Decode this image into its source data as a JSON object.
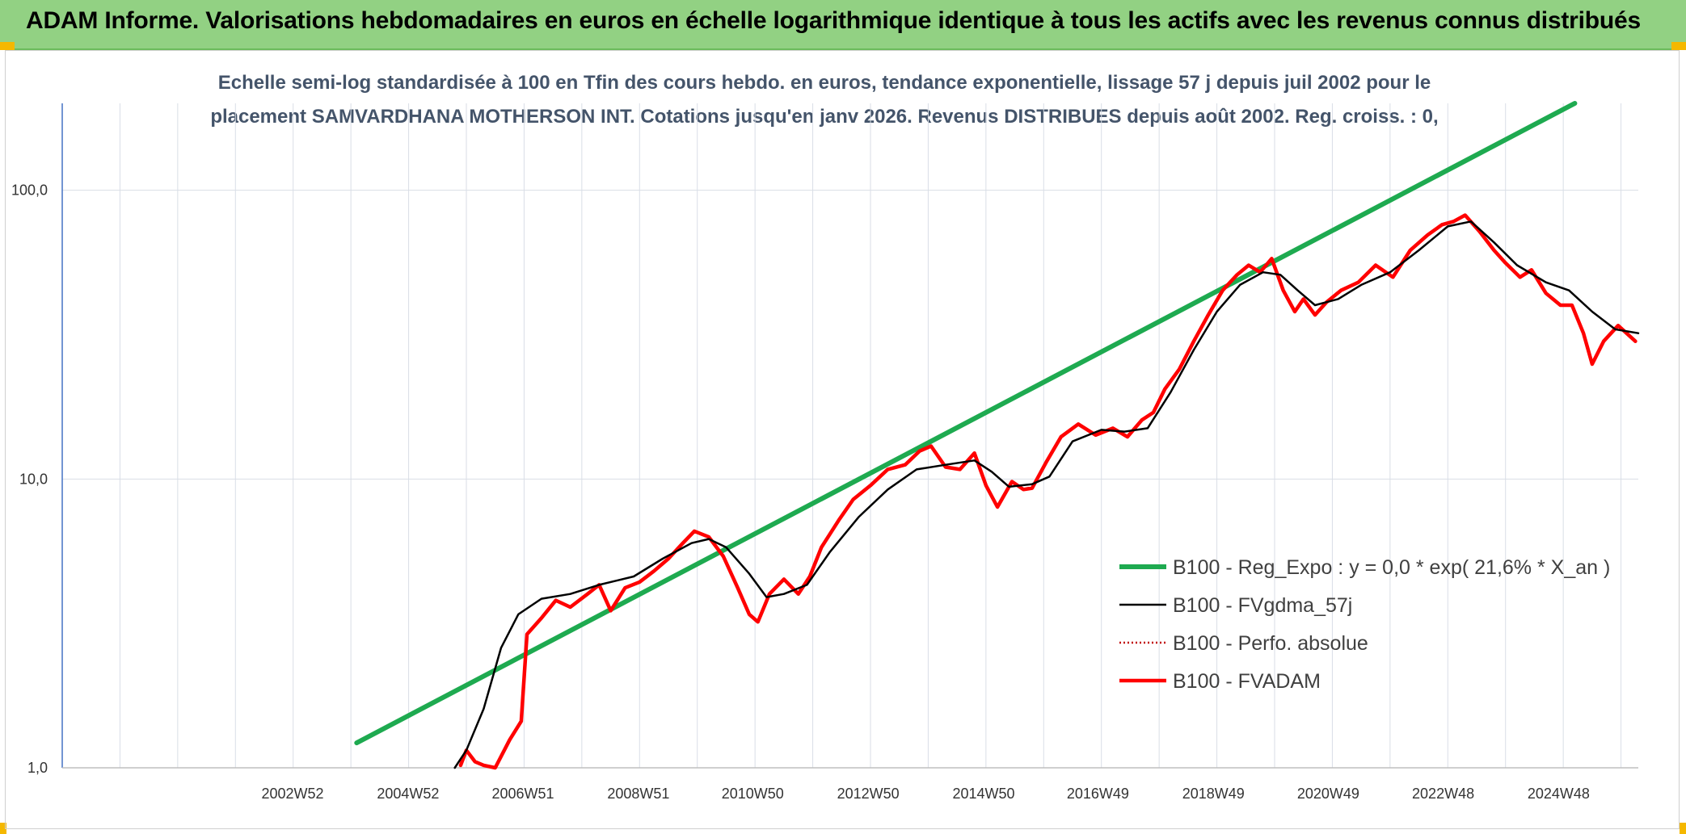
{
  "banner": {
    "title": "ADAM Informe. Valorisations hebdomadaires en euros en échelle logarithmique identique à tous les actifs avec les revenus connus distribués"
  },
  "colors": {
    "banner_bg": "#92d183",
    "regression": "#1eaa50",
    "gdma": "#000000",
    "perfo": "#c00000",
    "fvadam": "#ff0000",
    "title_text": "#44546a",
    "grid": "#d9dee6",
    "y_axis": "#4472c4"
  },
  "chart_data": {
    "type": "line",
    "title_line1": "Echelle semi-log standardisée à 100 en Tfin des cours hebdo. en euros, tendance exponentielle, lissage 57 j depuis juil 2002 pour le",
    "title_line2": "placement SAMVARDHANA MOTHERSON INT. Cotations jusqu'en janv 2026. Revenus DISTRIBUES depuis août 2002. Reg. croiss. : 0,",
    "y_scale": "log",
    "ylim": [
      1,
      200
    ],
    "y_ticks": [
      1,
      10,
      100
    ],
    "y_tick_labels": [
      "1,0",
      "10,0",
      "100,0"
    ],
    "xlim": [
      1999.0,
      2026.3
    ],
    "x_ticks": [
      2002.99,
      2004.99,
      2006.98,
      2008.98,
      2010.96,
      2012.96,
      2014.96,
      2016.94,
      2018.94,
      2020.93,
      2022.92,
      2024.92
    ],
    "x_tick_labels": [
      "2002W52",
      "2004W52",
      "2006W51",
      "2008W51",
      "2010W50",
      "2012W50",
      "2014W50",
      "2016W49",
      "2018W49",
      "2020W49",
      "2022W48",
      "2024W48"
    ],
    "grid": true,
    "legend_position": "lower-right",
    "series": [
      {
        "name": "B100 - Reg_Expo : y = 0,0 * exp( 21,6% *  X_an )",
        "style": "thick-solid",
        "points": [
          [
            2004.1,
            1.22
          ],
          [
            2025.2,
            200.0
          ]
        ]
      },
      {
        "name": "B100 - FVgdma_57j",
        "style": "thin-solid",
        "points": [
          [
            2005.8,
            1.0
          ],
          [
            2006.0,
            1.15
          ],
          [
            2006.3,
            1.6
          ],
          [
            2006.6,
            2.6
          ],
          [
            2006.9,
            3.4
          ],
          [
            2007.3,
            3.85
          ],
          [
            2007.8,
            4.0
          ],
          [
            2008.3,
            4.3
          ],
          [
            2008.9,
            4.6
          ],
          [
            2009.4,
            5.3
          ],
          [
            2009.9,
            6.0
          ],
          [
            2010.2,
            6.2
          ],
          [
            2010.5,
            5.8
          ],
          [
            2010.9,
            4.7
          ],
          [
            2011.2,
            3.9
          ],
          [
            2011.5,
            4.0
          ],
          [
            2011.9,
            4.3
          ],
          [
            2012.3,
            5.6
          ],
          [
            2012.8,
            7.4
          ],
          [
            2013.3,
            9.2
          ],
          [
            2013.8,
            10.8
          ],
          [
            2014.3,
            11.2
          ],
          [
            2014.8,
            11.6
          ],
          [
            2015.1,
            10.6
          ],
          [
            2015.4,
            9.4
          ],
          [
            2015.8,
            9.6
          ],
          [
            2016.1,
            10.2
          ],
          [
            2016.5,
            13.5
          ],
          [
            2017.0,
            14.8
          ],
          [
            2017.4,
            14.6
          ],
          [
            2017.8,
            15.0
          ],
          [
            2018.2,
            20.0
          ],
          [
            2018.6,
            28.0
          ],
          [
            2019.0,
            38.0
          ],
          [
            2019.4,
            47.0
          ],
          [
            2019.8,
            52.0
          ],
          [
            2020.1,
            51.0
          ],
          [
            2020.4,
            45.0
          ],
          [
            2020.7,
            40.0
          ],
          [
            2021.1,
            42.0
          ],
          [
            2021.5,
            47.0
          ],
          [
            2022.0,
            52.0
          ],
          [
            2022.5,
            62.0
          ],
          [
            2023.0,
            75.0
          ],
          [
            2023.4,
            78.0
          ],
          [
            2023.8,
            66.0
          ],
          [
            2024.2,
            55.0
          ],
          [
            2024.7,
            48.0
          ],
          [
            2025.1,
            45.0
          ],
          [
            2025.5,
            38.0
          ],
          [
            2025.9,
            33.0
          ],
          [
            2026.3,
            32.0
          ]
        ]
      },
      {
        "name": "B100 - Perfo. absolue",
        "style": "dotted",
        "points": []
      },
      {
        "name": "B100 - FVADAM",
        "style": "thick-solid",
        "points": [
          [
            2005.9,
            1.02
          ],
          [
            2006.0,
            1.15
          ],
          [
            2006.15,
            1.05
          ],
          [
            2006.3,
            1.02
          ],
          [
            2006.5,
            1.0
          ],
          [
            2006.75,
            1.25
          ],
          [
            2006.95,
            1.45
          ],
          [
            2007.05,
            2.9
          ],
          [
            2007.3,
            3.3
          ],
          [
            2007.55,
            3.8
          ],
          [
            2007.8,
            3.6
          ],
          [
            2008.1,
            4.0
          ],
          [
            2008.3,
            4.3
          ],
          [
            2008.5,
            3.5
          ],
          [
            2008.75,
            4.2
          ],
          [
            2009.0,
            4.4
          ],
          [
            2009.25,
            4.8
          ],
          [
            2009.5,
            5.3
          ],
          [
            2009.75,
            6.0
          ],
          [
            2009.95,
            6.6
          ],
          [
            2010.2,
            6.3
          ],
          [
            2010.45,
            5.4
          ],
          [
            2010.7,
            4.2
          ],
          [
            2010.9,
            3.4
          ],
          [
            2011.05,
            3.2
          ],
          [
            2011.25,
            4.0
          ],
          [
            2011.5,
            4.5
          ],
          [
            2011.75,
            4.0
          ],
          [
            2011.95,
            4.6
          ],
          [
            2012.15,
            5.8
          ],
          [
            2012.45,
            7.2
          ],
          [
            2012.7,
            8.5
          ],
          [
            2013.0,
            9.5
          ],
          [
            2013.3,
            10.8
          ],
          [
            2013.6,
            11.2
          ],
          [
            2013.85,
            12.5
          ],
          [
            2014.05,
            13.0
          ],
          [
            2014.3,
            11.0
          ],
          [
            2014.55,
            10.8
          ],
          [
            2014.8,
            12.3
          ],
          [
            2015.0,
            9.5
          ],
          [
            2015.2,
            8.0
          ],
          [
            2015.45,
            9.8
          ],
          [
            2015.65,
            9.2
          ],
          [
            2015.8,
            9.3
          ],
          [
            2016.05,
            11.5
          ],
          [
            2016.3,
            14.0
          ],
          [
            2016.6,
            15.5
          ],
          [
            2016.9,
            14.2
          ],
          [
            2017.2,
            15.0
          ],
          [
            2017.45,
            14.0
          ],
          [
            2017.7,
            16.0
          ],
          [
            2017.9,
            17.0
          ],
          [
            2018.1,
            20.5
          ],
          [
            2018.35,
            24.0
          ],
          [
            2018.6,
            30.0
          ],
          [
            2018.85,
            37.0
          ],
          [
            2019.1,
            45.0
          ],
          [
            2019.35,
            51.0
          ],
          [
            2019.55,
            55.0
          ],
          [
            2019.75,
            52.0
          ],
          [
            2019.95,
            58.0
          ],
          [
            2020.15,
            45.0
          ],
          [
            2020.35,
            38.0
          ],
          [
            2020.5,
            42.0
          ],
          [
            2020.7,
            37.0
          ],
          [
            2020.9,
            41.0
          ],
          [
            2021.15,
            45.0
          ],
          [
            2021.45,
            48.0
          ],
          [
            2021.75,
            55.0
          ],
          [
            2022.05,
            50.0
          ],
          [
            2022.35,
            62.0
          ],
          [
            2022.65,
            70.0
          ],
          [
            2022.9,
            76.0
          ],
          [
            2023.1,
            78.0
          ],
          [
            2023.3,
            82.0
          ],
          [
            2023.55,
            72.0
          ],
          [
            2023.8,
            62.0
          ],
          [
            2024.0,
            56.0
          ],
          [
            2024.25,
            50.0
          ],
          [
            2024.45,
            53.0
          ],
          [
            2024.7,
            44.0
          ],
          [
            2024.95,
            40.0
          ],
          [
            2025.15,
            40.0
          ],
          [
            2025.35,
            32.0
          ],
          [
            2025.5,
            25.0
          ],
          [
            2025.7,
            30.0
          ],
          [
            2025.95,
            34.0
          ],
          [
            2026.25,
            30.0
          ]
        ]
      }
    ]
  },
  "legend": {
    "items": [
      "B100 - Reg_Expo : y = 0,0 * exp( 21,6% *  X_an )",
      "B100 - FVgdma_57j",
      "B100 - Perfo. absolue",
      "B100 - FVADAM"
    ]
  }
}
